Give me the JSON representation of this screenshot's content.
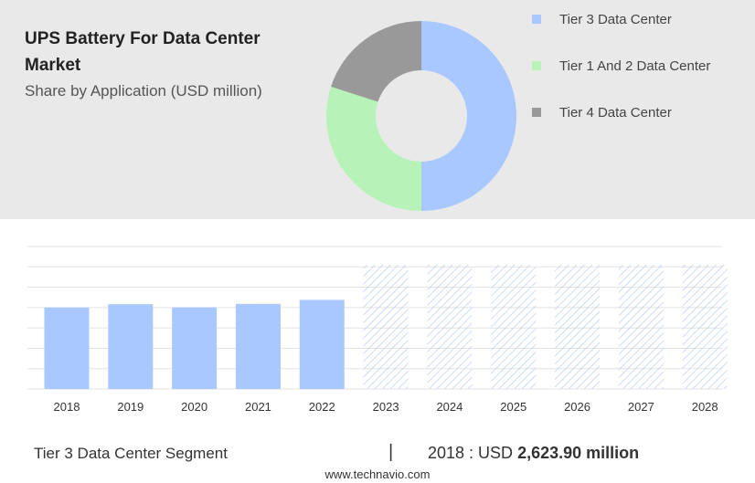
{
  "header": {
    "title": "UPS Battery For Data Center Market",
    "subtitle": "Share by Application (USD million)"
  },
  "colors": {
    "tier3": "#a9c8ff",
    "tier12": "#b7f3b8",
    "tier4": "#999999",
    "hatch": "#b9cdf0"
  },
  "chart_data": [
    {
      "type": "pie",
      "style": "donut",
      "labels": [
        "Tier 3 Data Center",
        "Tier 1 And 2 Data Center",
        "Tier 4 Data Center"
      ],
      "values": [
        50,
        30,
        20
      ],
      "colors": [
        "#a9c8ff",
        "#b7f3b8",
        "#999999"
      ],
      "legend": "right"
    },
    {
      "type": "bar",
      "categories": [
        "2018",
        "2019",
        "2020",
        "2021",
        "2022",
        "2023",
        "2024",
        "2025",
        "2026",
        "2027",
        "2028"
      ],
      "values": [
        2623.9,
        2730,
        2630,
        2740,
        2870,
        null,
        null,
        null,
        null,
        null,
        null
      ],
      "forecast_categories": [
        "2023",
        "2024",
        "2025",
        "2026",
        "2027",
        "2028"
      ],
      "ylim": [
        0,
        4000
      ],
      "grid": true
    }
  ],
  "footer": {
    "segment_label": "Tier 3 Data Center Segment",
    "separator": "|",
    "value_prefix": "2018 : USD",
    "value_bold": "2,623.90 million",
    "brand": "www.technavio.com"
  }
}
